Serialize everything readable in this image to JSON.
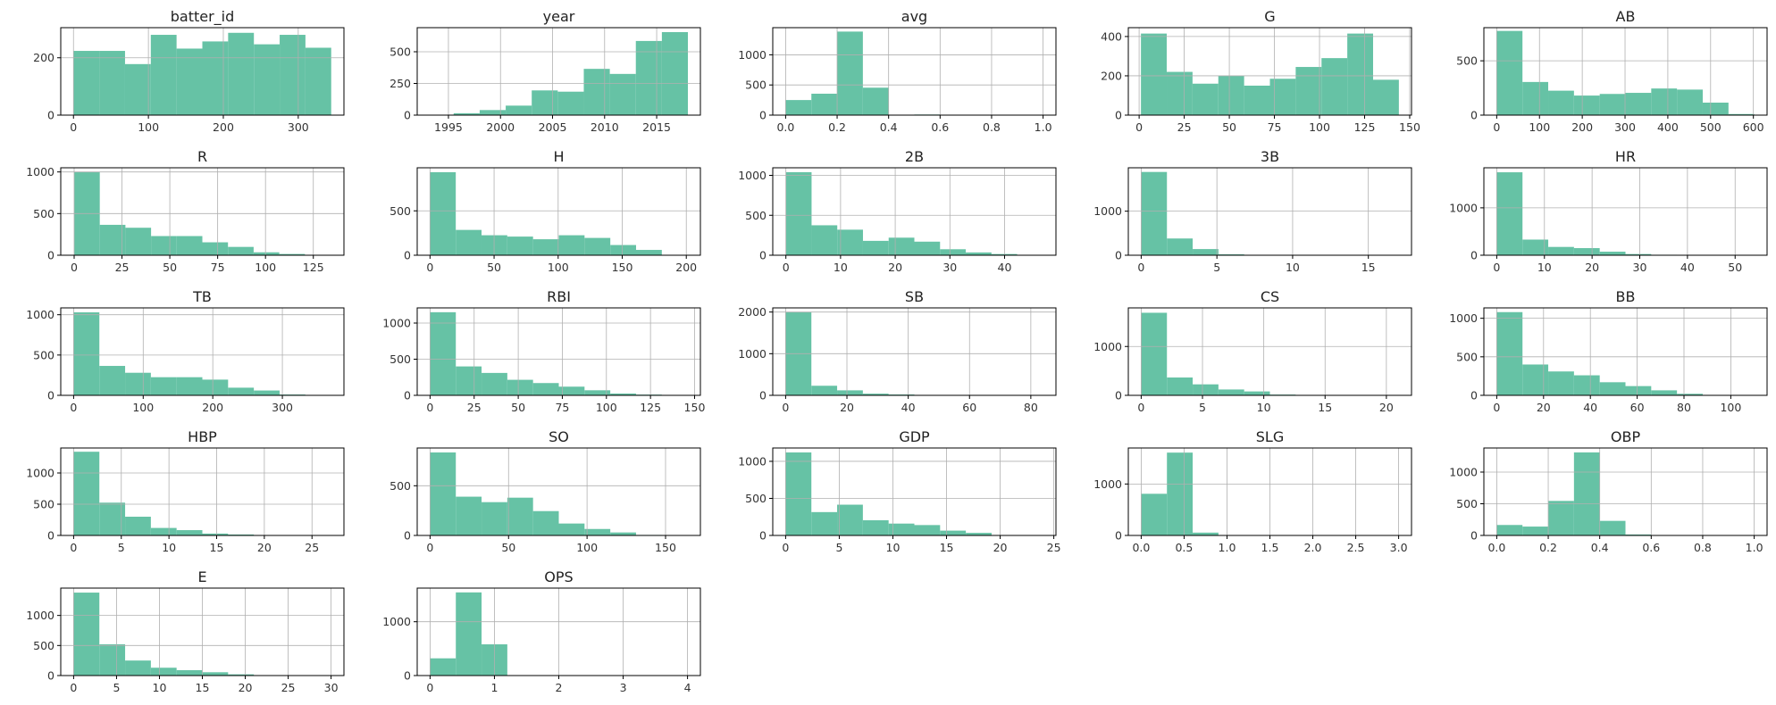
{
  "chart_data": [
    {
      "type": "bar",
      "title": "batter_id",
      "xlim": [
        -17,
        361
      ],
      "ylim": [
        0,
        305
      ],
      "bin_edges": [
        0,
        34.4,
        68.8,
        103.2,
        137.6,
        172,
        206.4,
        240.8,
        275.2,
        309.6,
        344
      ],
      "values": [
        224,
        224,
        178,
        280,
        232,
        257,
        287,
        247,
        280,
        235
      ],
      "xticks": [
        0,
        100,
        200,
        300
      ],
      "xtick_labels": [
        "0",
        "100",
        "200",
        "300"
      ],
      "yticks": [
        0,
        200
      ],
      "ytick_labels": [
        "0",
        "200"
      ]
    },
    {
      "type": "bar",
      "title": "year",
      "xlim": [
        1992,
        2019.2
      ],
      "ylim": [
        0,
        690
      ],
      "bin_edges": [
        1993,
        1995.5,
        1998,
        2000.5,
        2003,
        2005.5,
        2008,
        2010.5,
        2013,
        2015.5,
        2018
      ],
      "values": [
        3,
        15,
        40,
        75,
        195,
        185,
        365,
        325,
        585,
        655
      ],
      "xticks": [
        1995,
        2000,
        2005,
        2010,
        2015
      ],
      "xtick_labels": [
        "1995",
        "2000",
        "2005",
        "2010",
        "2015"
      ],
      "yticks": [
        0,
        250,
        500
      ],
      "ytick_labels": [
        "0",
        "250",
        "500"
      ]
    },
    {
      "type": "bar",
      "title": "avg",
      "xlim": [
        -0.05,
        1.05
      ],
      "ylim": [
        0,
        1450
      ],
      "bin_edges": [
        0,
        0.1,
        0.2,
        0.3,
        0.4,
        0.5,
        0.6,
        0.7,
        0.8,
        0.9,
        1.0
      ],
      "values": [
        250,
        355,
        1385,
        455,
        5,
        10,
        5,
        3,
        2,
        3
      ],
      "xticks": [
        0,
        0.2,
        0.4,
        0.6,
        0.8,
        1.0
      ],
      "xtick_labels": [
        "0.0",
        "0.2",
        "0.4",
        "0.6",
        "0.8",
        "1.0"
      ],
      "yticks": [
        0,
        500,
        1000
      ],
      "ytick_labels": [
        "0",
        "500",
        "1000"
      ]
    },
    {
      "type": "bar",
      "title": "G",
      "xlim": [
        -6,
        151
      ],
      "ylim": [
        0,
        445
      ],
      "bin_edges": [
        1,
        15.3,
        29.6,
        43.9,
        58.2,
        72.5,
        86.8,
        101.1,
        115.4,
        129.7,
        144
      ],
      "values": [
        415,
        220,
        160,
        200,
        150,
        185,
        245,
        290,
        415,
        180
      ],
      "xticks": [
        0,
        25,
        50,
        75,
        100,
        125,
        150
      ],
      "xtick_labels": [
        "0",
        "25",
        "50",
        "75",
        "100",
        "125",
        "150"
      ],
      "yticks": [
        0,
        200,
        400
      ],
      "ytick_labels": [
        "0",
        "200",
        "400"
      ]
    },
    {
      "type": "bar",
      "title": "AB",
      "xlim": [
        -30,
        632
      ],
      "ylim": [
        0,
        805
      ],
      "bin_edges": [
        0,
        60.2,
        120.4,
        180.6,
        240.8,
        301,
        361.2,
        421.4,
        481.6,
        541.8,
        602
      ],
      "values": [
        775,
        305,
        225,
        180,
        195,
        205,
        245,
        235,
        115,
        10
      ],
      "xticks": [
        0,
        100,
        200,
        300,
        400,
        500,
        600
      ],
      "xtick_labels": [
        "0",
        "100",
        "200",
        "300",
        "400",
        "500",
        "600"
      ],
      "yticks": [
        0,
        500
      ],
      "ytick_labels": [
        "0",
        "500"
      ]
    },
    {
      "type": "bar",
      "title": "R",
      "xlim": [
        -7,
        141
      ],
      "ylim": [
        0,
        1050
      ],
      "bin_edges": [
        0,
        13.4,
        26.8,
        40.2,
        53.6,
        67,
        80.4,
        93.8,
        107.2,
        120.6,
        134
      ],
      "values": [
        1000,
        365,
        330,
        230,
        230,
        155,
        100,
        35,
        15,
        3
      ],
      "xticks": [
        0,
        25,
        50,
        75,
        100,
        125
      ],
      "xtick_labels": [
        "0",
        "25",
        "50",
        "75",
        "100",
        "125"
      ],
      "yticks": [
        0,
        500,
        1000
      ],
      "ytick_labels": [
        "0",
        "500",
        "1000"
      ]
    },
    {
      "type": "bar",
      "title": "H",
      "xlim": [
        -10,
        211
      ],
      "ylim": [
        0,
        985
      ],
      "bin_edges": [
        0,
        20.1,
        40.2,
        60.3,
        80.4,
        100.5,
        120.6,
        140.7,
        160.8,
        180.9,
        201
      ],
      "values": [
        935,
        285,
        225,
        210,
        180,
        225,
        195,
        115,
        60,
        5
      ],
      "xticks": [
        0,
        50,
        100,
        150,
        200
      ],
      "xtick_labels": [
        "0",
        "50",
        "100",
        "150",
        "200"
      ],
      "yticks": [
        0,
        500
      ],
      "ytick_labels": [
        "0",
        "500"
      ]
    },
    {
      "type": "bar",
      "title": "2B",
      "xlim": [
        -2.4,
        49.4
      ],
      "ylim": [
        0,
        1095
      ],
      "bin_edges": [
        0,
        4.7,
        9.4,
        14.1,
        18.8,
        23.5,
        28.2,
        32.9,
        37.6,
        42.3,
        47
      ],
      "values": [
        1040,
        375,
        320,
        180,
        220,
        170,
        75,
        35,
        15,
        3
      ],
      "xticks": [
        0,
        10,
        20,
        30,
        40
      ],
      "xtick_labels": [
        "0",
        "10",
        "20",
        "30",
        "40"
      ],
      "yticks": [
        0,
        500,
        1000
      ],
      "ytick_labels": [
        "0",
        "500",
        "1000"
      ]
    },
    {
      "type": "bar",
      "title": "3B",
      "xlim": [
        -0.85,
        17.85
      ],
      "ylim": [
        0,
        1985
      ],
      "bin_edges": [
        0,
        1.7,
        3.4,
        5.1,
        6.8,
        8.5,
        10.2,
        11.9,
        13.6,
        15.3,
        17
      ],
      "values": [
        1890,
        380,
        140,
        20,
        10,
        5,
        3,
        2,
        1,
        2
      ],
      "xticks": [
        0,
        5,
        10,
        15
      ],
      "xtick_labels": [
        "0",
        "5",
        "10",
        "15"
      ],
      "yticks": [
        0,
        1000
      ],
      "ytick_labels": [
        "0",
        "1000"
      ]
    },
    {
      "type": "bar",
      "title": "HR",
      "xlim": [
        -2.7,
        56.7
      ],
      "ylim": [
        0,
        1845
      ],
      "bin_edges": [
        0,
        5.4,
        10.8,
        16.2,
        21.6,
        27,
        32.4,
        37.8,
        43.2,
        48.6,
        54
      ],
      "values": [
        1750,
        330,
        175,
        150,
        75,
        25,
        10,
        5,
        2,
        1
      ],
      "xticks": [
        0,
        10,
        20,
        30,
        40,
        50
      ],
      "xtick_labels": [
        "0",
        "10",
        "20",
        "30",
        "40",
        "50"
      ],
      "yticks": [
        0,
        1000
      ],
      "ytick_labels": [
        "0",
        "1000"
      ]
    },
    {
      "type": "bar",
      "title": "TB",
      "xlim": [
        -18.5,
        388.5
      ],
      "ylim": [
        0,
        1085
      ],
      "bin_edges": [
        0,
        37,
        74,
        111,
        148,
        185,
        222,
        259,
        296,
        333,
        370
      ],
      "values": [
        1030,
        365,
        280,
        225,
        225,
        195,
        95,
        60,
        10,
        2
      ],
      "xticks": [
        0,
        100,
        200,
        300
      ],
      "xtick_labels": [
        "0",
        "100",
        "200",
        "300"
      ],
      "yticks": [
        0,
        500,
        1000
      ],
      "ytick_labels": [
        "0",
        "500",
        "1000"
      ]
    },
    {
      "type": "bar",
      "title": "RBI",
      "xlim": [
        -7.3,
        153.3
      ],
      "ylim": [
        0,
        1210
      ],
      "bin_edges": [
        0,
        14.6,
        29.2,
        43.8,
        58.4,
        73,
        87.6,
        102.2,
        116.8,
        131.4,
        146
      ],
      "values": [
        1150,
        400,
        310,
        215,
        170,
        120,
        70,
        25,
        10,
        3
      ],
      "xticks": [
        0,
        25,
        50,
        75,
        100,
        125,
        150
      ],
      "xtick_labels": [
        "0",
        "25",
        "50",
        "75",
        "100",
        "125",
        "150"
      ],
      "yticks": [
        0,
        500,
        1000
      ],
      "ytick_labels": [
        "0",
        "500",
        "1000"
      ]
    },
    {
      "type": "bar",
      "title": "SB",
      "xlim": [
        -4.2,
        88.2
      ],
      "ylim": [
        0,
        2100
      ],
      "bin_edges": [
        0,
        8.4,
        16.8,
        25.2,
        33.6,
        42,
        50.4,
        58.8,
        67.2,
        75.6,
        84
      ],
      "values": [
        2000,
        230,
        120,
        40,
        20,
        10,
        5,
        3,
        2,
        1
      ],
      "xticks": [
        0,
        20,
        40,
        60,
        80
      ],
      "xtick_labels": [
        "0",
        "20",
        "40",
        "60",
        "80"
      ],
      "yticks": [
        0,
        1000,
        2000
      ],
      "ytick_labels": [
        "0",
        "1000",
        "2000"
      ]
    },
    {
      "type": "bar",
      "title": "CS",
      "xlim": [
        -1.05,
        22.05
      ],
      "ylim": [
        0,
        1790
      ],
      "bin_edges": [
        0,
        2.1,
        4.2,
        6.3,
        8.4,
        10.5,
        12.6,
        14.7,
        16.8,
        18.9,
        21
      ],
      "values": [
        1690,
        365,
        225,
        120,
        80,
        15,
        5,
        3,
        2,
        1
      ],
      "xticks": [
        0,
        5,
        10,
        15,
        20
      ],
      "xtick_labels": [
        "0",
        "5",
        "10",
        "15",
        "20"
      ],
      "yticks": [
        0,
        1000
      ],
      "ytick_labels": [
        "0",
        "1000"
      ]
    },
    {
      "type": "bar",
      "title": "BB",
      "xlim": [
        -5.5,
        115.5
      ],
      "ylim": [
        0,
        1135
      ],
      "bin_edges": [
        0,
        11,
        22,
        33,
        44,
        55,
        66,
        77,
        88,
        99,
        110
      ],
      "values": [
        1080,
        400,
        310,
        260,
        170,
        120,
        65,
        20,
        5,
        3
      ],
      "xticks": [
        0,
        20,
        40,
        60,
        80,
        100
      ],
      "xtick_labels": [
        "0",
        "20",
        "40",
        "60",
        "80",
        "100"
      ],
      "yticks": [
        0,
        500,
        1000
      ],
      "ytick_labels": [
        "0",
        "500",
        "1000"
      ]
    },
    {
      "type": "bar",
      "title": "HBP",
      "xlim": [
        -1.35,
        28.35
      ],
      "ylim": [
        0,
        1400
      ],
      "bin_edges": [
        0,
        2.7,
        5.4,
        8.1,
        10.8,
        13.5,
        16.2,
        18.9,
        21.6,
        24.3,
        27
      ],
      "values": [
        1340,
        525,
        300,
        120,
        85,
        30,
        15,
        5,
        2,
        1
      ],
      "xticks": [
        0,
        5,
        10,
        15,
        20,
        25
      ],
      "xtick_labels": [
        "0",
        "5",
        "10",
        "15",
        "20",
        "25"
      ],
      "yticks": [
        0,
        500,
        1000
      ],
      "ytick_labels": [
        "0",
        "500",
        "1000"
      ]
    },
    {
      "type": "bar",
      "title": "SO",
      "xlim": [
        -8.2,
        172.2
      ],
      "ylim": [
        0,
        880
      ],
      "bin_edges": [
        0,
        16.4,
        32.8,
        49.2,
        65.6,
        82,
        98.4,
        114.8,
        131.2,
        147.6,
        164
      ],
      "values": [
        835,
        390,
        335,
        380,
        245,
        120,
        65,
        30,
        5,
        2
      ],
      "xticks": [
        0,
        50,
        100,
        150
      ],
      "xtick_labels": [
        "0",
        "50",
        "100",
        "150"
      ],
      "yticks": [
        0,
        500
      ],
      "ytick_labels": [
        "0",
        "500"
      ]
    },
    {
      "type": "bar",
      "title": "GDP",
      "xlim": [
        -1.2,
        25.2
      ],
      "ylim": [
        0,
        1180
      ],
      "bin_edges": [
        0,
        2.4,
        4.8,
        7.2,
        9.6,
        12,
        14.4,
        16.8,
        19.2,
        21.6,
        24
      ],
      "values": [
        1120,
        315,
        415,
        205,
        160,
        140,
        65,
        35,
        5,
        2
      ],
      "xticks": [
        0,
        5,
        10,
        15,
        20,
        25
      ],
      "xtick_labels": [
        "0",
        "5",
        "10",
        "15",
        "20",
        "25"
      ],
      "yticks": [
        0,
        500,
        1000
      ],
      "ytick_labels": [
        "0",
        "500",
        "1000"
      ]
    },
    {
      "type": "bar",
      "title": "SLG",
      "xlim": [
        -0.15,
        3.15
      ],
      "ylim": [
        0,
        1700
      ],
      "bin_edges": [
        0,
        0.3,
        0.6,
        0.9,
        1.2,
        1.5,
        1.8,
        2.1,
        2.4,
        2.7,
        3.0
      ],
      "values": [
        810,
        1610,
        55,
        5,
        3,
        2,
        1,
        1,
        1,
        1
      ],
      "xticks": [
        0,
        0.5,
        1.0,
        1.5,
        2.0,
        2.5,
        3.0
      ],
      "xtick_labels": [
        "0.0",
        "0.5",
        "1.0",
        "1.5",
        "2.0",
        "2.5",
        "3.0"
      ],
      "yticks": [
        0,
        1000
      ],
      "ytick_labels": [
        "0",
        "1000"
      ]
    },
    {
      "type": "bar",
      "title": "OBP",
      "xlim": [
        -0.05,
        1.05
      ],
      "ylim": [
        0,
        1380
      ],
      "bin_edges": [
        0,
        0.1,
        0.2,
        0.3,
        0.4,
        0.5,
        0.6,
        0.7,
        0.8,
        0.9,
        1.0
      ],
      "values": [
        165,
        140,
        545,
        1310,
        230,
        15,
        3,
        2,
        1,
        3
      ],
      "xticks": [
        0,
        0.2,
        0.4,
        0.6,
        0.8,
        1.0
      ],
      "xtick_labels": [
        "0.0",
        "0.2",
        "0.4",
        "0.6",
        "0.8",
        "1.0"
      ],
      "yticks": [
        0,
        500,
        1000
      ],
      "ytick_labels": [
        "0",
        "500",
        "1000"
      ]
    },
    {
      "type": "bar",
      "title": "E",
      "xlim": [
        -1.5,
        31.5
      ],
      "ylim": [
        0,
        1455
      ],
      "bin_edges": [
        0,
        3,
        6,
        9,
        12,
        15,
        18,
        21,
        24,
        27,
        30
      ],
      "values": [
        1380,
        520,
        250,
        130,
        90,
        55,
        20,
        5,
        2,
        1
      ],
      "xticks": [
        0,
        5,
        10,
        15,
        20,
        25,
        30
      ],
      "xtick_labels": [
        "0",
        "5",
        "10",
        "15",
        "20",
        "25",
        "30"
      ],
      "yticks": [
        0,
        500,
        1000
      ],
      "ytick_labels": [
        "0",
        "500",
        "1000"
      ]
    },
    {
      "type": "bar",
      "title": "OPS",
      "xlim": [
        -0.2,
        4.2
      ],
      "ylim": [
        0,
        1625
      ],
      "bin_edges": [
        0,
        0.4,
        0.8,
        1.2,
        1.6,
        2.0,
        2.4,
        2.8,
        3.2,
        3.6,
        4.0
      ],
      "values": [
        320,
        1545,
        580,
        5,
        2,
        1,
        1,
        1,
        1,
        1
      ],
      "xticks": [
        0,
        1,
        2,
        3,
        4
      ],
      "xtick_labels": [
        "0",
        "1",
        "2",
        "3",
        "4"
      ],
      "yticks": [
        0,
        1000
      ],
      "ytick_labels": [
        "0",
        "1000"
      ]
    }
  ]
}
